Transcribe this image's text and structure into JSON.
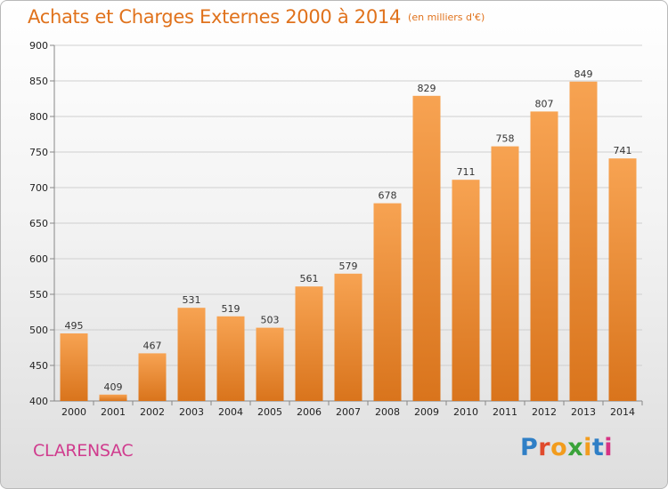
{
  "chart_data": {
    "type": "bar",
    "title": "Achats et Charges Externes 2000 à 2014",
    "subtitle": "(en milliers d'€)",
    "categories": [
      "2000",
      "2001",
      "2002",
      "2003",
      "2004",
      "2005",
      "2006",
      "2007",
      "2008",
      "2009",
      "2010",
      "2011",
      "2012",
      "2013",
      "2014"
    ],
    "values": [
      495,
      409,
      467,
      531,
      519,
      503,
      561,
      579,
      678,
      829,
      711,
      758,
      807,
      849,
      741
    ],
    "xlabel": "",
    "ylabel": "",
    "ylim": [
      400,
      900
    ],
    "yticks": [
      400,
      450,
      500,
      550,
      600,
      650,
      700,
      750,
      800,
      850,
      900
    ],
    "grid": true,
    "legend": "none",
    "bar_color_top": "#f7a352",
    "bar_color_bottom": "#d9741c"
  },
  "footer": {
    "commune": "CLARENSAC",
    "commune_color": "#d03c8e",
    "logo_text": "Proxiti"
  },
  "colors": {
    "title": "#e0721c",
    "logo_letters": [
      "#2f7fc6",
      "#e04a2c",
      "#f29c1d",
      "#3aa33a",
      "#f29c1d",
      "#2f7fc6",
      "#d63384"
    ]
  }
}
